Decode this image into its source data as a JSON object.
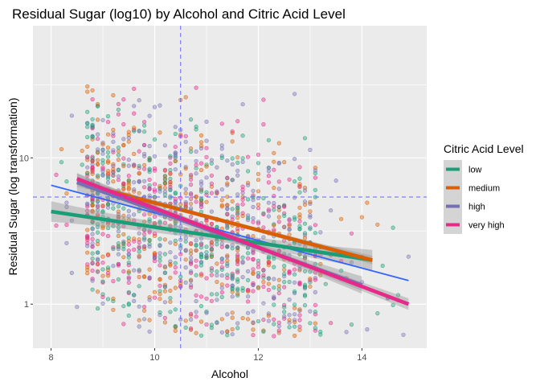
{
  "chart_data": {
    "type": "scatter",
    "title": "Residual Sugar (log10) by Alcohol and Citric Acid Level",
    "xlabel": "Alcohol",
    "ylabel": "Residual Sugar (log transformation)",
    "x_range": [
      7.65,
      15.25
    ],
    "y_range": [
      0.5,
      80
    ],
    "y_scale": "log10",
    "x_ticks": [
      8,
      10,
      12,
      14
    ],
    "y_ticks": [
      1,
      10
    ],
    "grid": true,
    "reference_lines": {
      "x_mean": 10.5,
      "y_mean": 5.4
    },
    "legend": {
      "title": "Citric Acid Level",
      "position": "right",
      "entries": [
        "low",
        "medium",
        "high",
        "very high"
      ]
    },
    "colors": {
      "low": "#1b9e77",
      "medium": "#d95f02",
      "high": "#7570b3",
      "very high": "#e7298a",
      "overall": "#3366ff",
      "reference": "#6666ff",
      "panel": "#ebebeb"
    },
    "series": [
      {
        "name": "low",
        "line": {
          "x": [
            8.0,
            14.2
          ],
          "y": [
            4.3,
            2.0
          ]
        },
        "ci": 0.07
      },
      {
        "name": "medium",
        "line": {
          "x": [
            8.5,
            14.2
          ],
          "y": [
            6.8,
            2.0
          ]
        },
        "ci": 0.03
      },
      {
        "name": "high",
        "line": {
          "x": [
            8.5,
            14.0
          ],
          "y": [
            6.8,
            1.35
          ]
        },
        "ci": 0.06
      },
      {
        "name": "very high",
        "line": {
          "x": [
            8.5,
            14.9
          ],
          "y": [
            7.2,
            1.0
          ]
        },
        "ci": 0.04
      }
    ],
    "overall_fit": {
      "x": [
        8.0,
        14.9
      ],
      "y": [
        6.5,
        1.45
      ]
    },
    "scatter_summary": {
      "x_min": 8.0,
      "x_max": 14.9,
      "y_min": 0.6,
      "y_max": 31,
      "dense_x": [
        8.7,
        13.2
      ],
      "point_count": 1400
    }
  }
}
